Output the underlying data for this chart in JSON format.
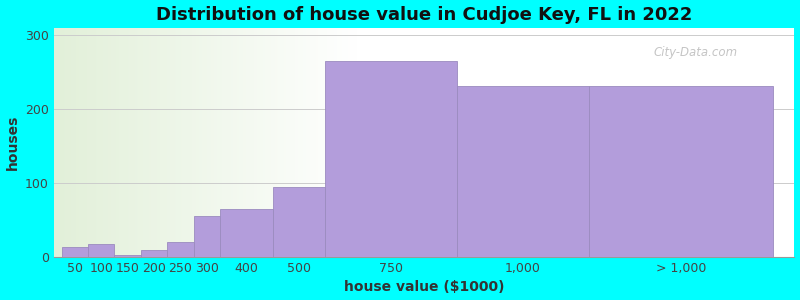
{
  "title": "Distribution of house value in Cudjoe Key, FL in 2022",
  "xlabel": "house value ($1000)",
  "ylabel": "houses",
  "background_color": "#00FFFF",
  "bar_color": "#b39ddb",
  "bar_edge_color": "#9b8bbf",
  "grid_color": "#cccccc",
  "categories": [
    "50",
    "100",
    "150",
    "200",
    "250",
    "300",
    "400",
    "500",
    "750",
    "1,000",
    "> 1,000"
  ],
  "values": [
    13,
    17,
    3,
    10,
    20,
    55,
    65,
    95,
    265,
    232,
    232
  ],
  "bar_lefts": [
    0,
    50,
    100,
    150,
    200,
    250,
    300,
    400,
    500,
    750,
    1000
  ],
  "bar_rights": [
    50,
    100,
    150,
    200,
    250,
    300,
    400,
    500,
    750,
    1000,
    1350
  ],
  "ylim": [
    0,
    310
  ],
  "yticks": [
    0,
    100,
    200,
    300
  ],
  "title_fontsize": 13,
  "axis_fontsize": 10,
  "tick_fontsize": 9,
  "watermark_text": "City-Data.com",
  "gradient_stop_x": 500,
  "xlim_left": -15,
  "xlim_right": 1390
}
